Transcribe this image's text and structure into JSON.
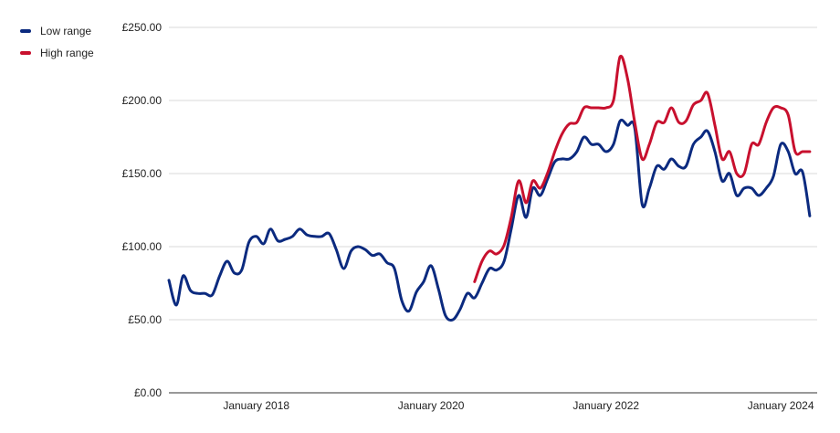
{
  "colors": {
    "low": "#0b2a7f",
    "high": "#c8102e",
    "grid": "#d9d9d9",
    "axis": "#333333"
  },
  "chart_data": {
    "type": "line",
    "title": "",
    "xlabel": "",
    "ylabel": "",
    "ylim": [
      0,
      250
    ],
    "xlim": [
      "2017-01-01",
      "2024-06-01"
    ],
    "grid": true,
    "legend_position": "top-left",
    "yticks": [
      {
        "value": 0,
        "label": "£0.00"
      },
      {
        "value": 50,
        "label": "£50.00"
      },
      {
        "value": 100,
        "label": "£100.00"
      },
      {
        "value": 150,
        "label": "£150.00"
      },
      {
        "value": 200,
        "label": "£200.00"
      },
      {
        "value": 250,
        "label": "£250.00"
      }
    ],
    "xticks": [
      {
        "date": "2018-01-01",
        "label": "January 2018"
      },
      {
        "date": "2020-01-01",
        "label": "January 2020"
      },
      {
        "date": "2022-01-01",
        "label": "January 2022"
      },
      {
        "date": "2024-01-01",
        "label": "January 2024"
      }
    ],
    "series": [
      {
        "name": "Low range",
        "points": [
          [
            "2017-01-01",
            77
          ],
          [
            "2017-02-01",
            60
          ],
          [
            "2017-03-01",
            80
          ],
          [
            "2017-04-01",
            70
          ],
          [
            "2017-05-01",
            68
          ],
          [
            "2017-06-01",
            68
          ],
          [
            "2017-07-01",
            67
          ],
          [
            "2017-08-01",
            80
          ],
          [
            "2017-09-01",
            90
          ],
          [
            "2017-10-01",
            82
          ],
          [
            "2017-11-01",
            84
          ],
          [
            "2017-12-01",
            103
          ],
          [
            "2018-01-01",
            107
          ],
          [
            "2018-02-01",
            102
          ],
          [
            "2018-03-01",
            112
          ],
          [
            "2018-04-01",
            104
          ],
          [
            "2018-05-01",
            105
          ],
          [
            "2018-06-01",
            107
          ],
          [
            "2018-07-01",
            112
          ],
          [
            "2018-08-01",
            108
          ],
          [
            "2018-09-01",
            107
          ],
          [
            "2018-10-01",
            107
          ],
          [
            "2018-11-01",
            109
          ],
          [
            "2018-12-01",
            98
          ],
          [
            "2019-01-01",
            85
          ],
          [
            "2019-02-01",
            97
          ],
          [
            "2019-03-01",
            100
          ],
          [
            "2019-04-01",
            98
          ],
          [
            "2019-05-01",
            94
          ],
          [
            "2019-06-01",
            95
          ],
          [
            "2019-07-01",
            89
          ],
          [
            "2019-08-01",
            85
          ],
          [
            "2019-09-01",
            63
          ],
          [
            "2019-10-01",
            56
          ],
          [
            "2019-11-01",
            69
          ],
          [
            "2019-12-01",
            76
          ],
          [
            "2020-01-01",
            87
          ],
          [
            "2020-02-01",
            71
          ],
          [
            "2020-03-01",
            53
          ],
          [
            "2020-04-01",
            50
          ],
          [
            "2020-05-01",
            57
          ],
          [
            "2020-06-01",
            68
          ],
          [
            "2020-07-01",
            65
          ],
          [
            "2020-08-01",
            75
          ],
          [
            "2020-09-01",
            85
          ],
          [
            "2020-10-01",
            84
          ],
          [
            "2020-11-01",
            90
          ],
          [
            "2020-12-01",
            112
          ],
          [
            "2021-01-01",
            135
          ],
          [
            "2021-02-01",
            120
          ],
          [
            "2021-03-01",
            140
          ],
          [
            "2021-04-01",
            135
          ],
          [
            "2021-05-01",
            146
          ],
          [
            "2021-06-01",
            158
          ],
          [
            "2021-07-01",
            160
          ],
          [
            "2021-08-01",
            160
          ],
          [
            "2021-09-01",
            165
          ],
          [
            "2021-10-01",
            175
          ],
          [
            "2021-11-01",
            170
          ],
          [
            "2021-12-01",
            170
          ],
          [
            "2022-01-01",
            165
          ],
          [
            "2022-02-01",
            170
          ],
          [
            "2022-03-01",
            186
          ],
          [
            "2022-04-01",
            183
          ],
          [
            "2022-05-01",
            181
          ],
          [
            "2022-06-01",
            129
          ],
          [
            "2022-07-01",
            140
          ],
          [
            "2022-08-01",
            155
          ],
          [
            "2022-09-01",
            153
          ],
          [
            "2022-10-01",
            160
          ],
          [
            "2022-11-01",
            155
          ],
          [
            "2022-12-01",
            155
          ],
          [
            "2023-01-01",
            170
          ],
          [
            "2023-02-01",
            175
          ],
          [
            "2023-03-01",
            179
          ],
          [
            "2023-04-01",
            165
          ],
          [
            "2023-05-01",
            145
          ],
          [
            "2023-06-01",
            150
          ],
          [
            "2023-07-01",
            135
          ],
          [
            "2023-08-01",
            140
          ],
          [
            "2023-09-01",
            140
          ],
          [
            "2023-10-01",
            135
          ],
          [
            "2023-11-01",
            140
          ],
          [
            "2023-12-01",
            148
          ],
          [
            "2024-01-01",
            170
          ],
          [
            "2024-02-01",
            165
          ],
          [
            "2024-03-01",
            150
          ],
          [
            "2024-04-01",
            151
          ],
          [
            "2024-05-01",
            121
          ]
        ]
      },
      {
        "name": "High range",
        "points": [
          [
            "2020-07-01",
            76
          ],
          [
            "2020-08-01",
            90
          ],
          [
            "2020-09-01",
            97
          ],
          [
            "2020-10-01",
            95
          ],
          [
            "2020-11-01",
            101
          ],
          [
            "2020-12-01",
            120
          ],
          [
            "2021-01-01",
            145
          ],
          [
            "2021-02-01",
            130
          ],
          [
            "2021-03-01",
            145
          ],
          [
            "2021-04-01",
            140
          ],
          [
            "2021-05-01",
            150
          ],
          [
            "2021-06-01",
            165
          ],
          [
            "2021-07-01",
            177
          ],
          [
            "2021-08-01",
            184
          ],
          [
            "2021-09-01",
            185
          ],
          [
            "2021-10-01",
            195
          ],
          [
            "2021-11-01",
            195
          ],
          [
            "2021-12-01",
            195
          ],
          [
            "2022-01-01",
            195
          ],
          [
            "2022-02-01",
            200
          ],
          [
            "2022-03-01",
            230
          ],
          [
            "2022-04-01",
            215
          ],
          [
            "2022-05-01",
            185
          ],
          [
            "2022-06-01",
            160
          ],
          [
            "2022-07-01",
            170
          ],
          [
            "2022-08-01",
            185
          ],
          [
            "2022-09-01",
            185
          ],
          [
            "2022-10-01",
            195
          ],
          [
            "2022-11-01",
            185
          ],
          [
            "2022-12-01",
            186
          ],
          [
            "2023-01-01",
            197
          ],
          [
            "2023-02-01",
            200
          ],
          [
            "2023-03-01",
            205
          ],
          [
            "2023-04-01",
            183
          ],
          [
            "2023-05-01",
            160
          ],
          [
            "2023-06-01",
            165
          ],
          [
            "2023-07-01",
            150
          ],
          [
            "2023-08-01",
            150
          ],
          [
            "2023-09-01",
            170
          ],
          [
            "2023-10-01",
            170
          ],
          [
            "2023-11-01",
            185
          ],
          [
            "2023-12-01",
            195
          ],
          [
            "2024-01-01",
            195
          ],
          [
            "2024-02-01",
            190
          ],
          [
            "2024-03-01",
            165
          ],
          [
            "2024-04-01",
            165
          ],
          [
            "2024-05-01",
            165
          ]
        ]
      }
    ]
  }
}
